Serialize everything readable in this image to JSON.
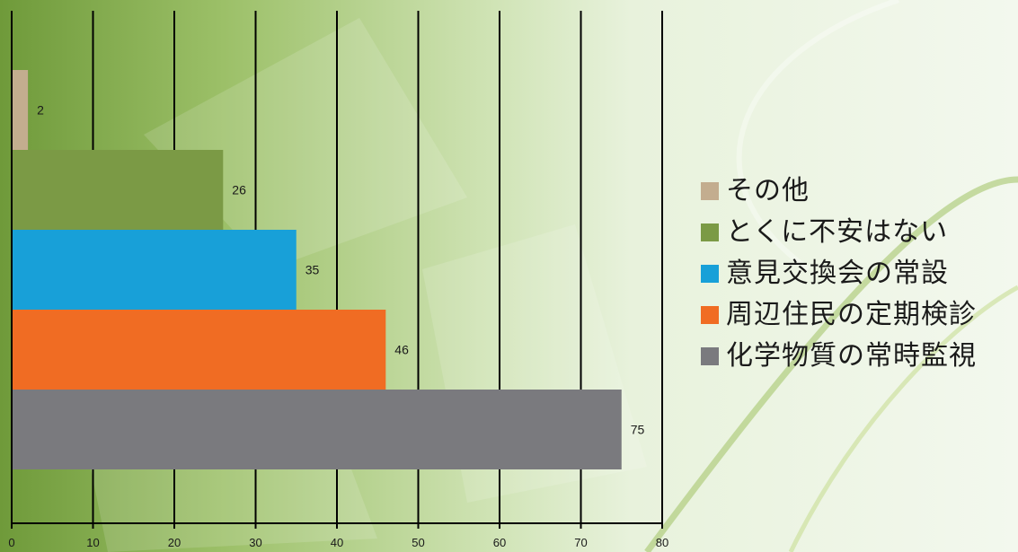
{
  "chart_data": {
    "type": "bar",
    "orientation": "horizontal",
    "categories": [
      "その他",
      "とくに不安はない",
      "意見交換会の常設",
      "周辺住民の定期検診",
      "化学物質の常時監視"
    ],
    "values": [
      2,
      26,
      35,
      46,
      75
    ],
    "colors": [
      "#c3ad8f",
      "#7b9a45",
      "#18a0d8",
      "#f06c23",
      "#7a7a7e"
    ],
    "xlim": [
      0,
      80
    ],
    "xticks": [
      0,
      10,
      20,
      30,
      40,
      50,
      60,
      70,
      80
    ],
    "grid": true,
    "legend_position": "right",
    "title": "",
    "xlabel": "",
    "ylabel": ""
  }
}
